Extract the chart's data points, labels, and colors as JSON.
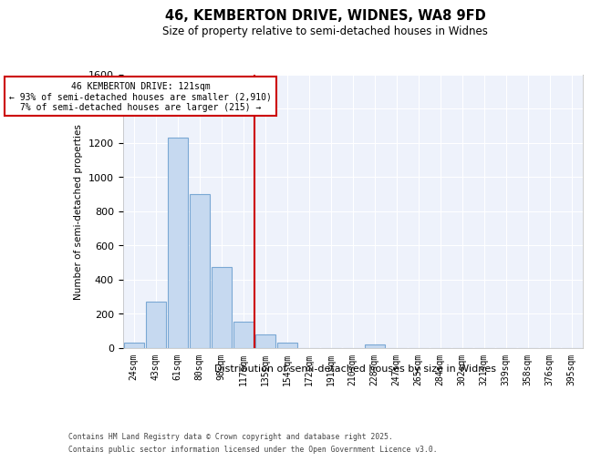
{
  "title_line1": "46, KEMBERTON DRIVE, WIDNES, WA8 9FD",
  "title_line2": "Size of property relative to semi-detached houses in Widnes",
  "xlabel": "Distribution of semi-detached houses by size in Widnes",
  "ylabel": "Number of semi-detached properties",
  "bins": [
    "24sqm",
    "43sqm",
    "61sqm",
    "80sqm",
    "98sqm",
    "117sqm",
    "135sqm",
    "154sqm",
    "172sqm",
    "191sqm",
    "210sqm",
    "228sqm",
    "247sqm",
    "265sqm",
    "284sqm",
    "302sqm",
    "321sqm",
    "339sqm",
    "358sqm",
    "376sqm",
    "395sqm"
  ],
  "values": [
    30,
    270,
    1230,
    900,
    470,
    150,
    75,
    30,
    0,
    0,
    0,
    20,
    0,
    0,
    0,
    0,
    0,
    0,
    0,
    0,
    0
  ],
  "bar_color": "#c6d9f0",
  "bar_edge_color": "#7aa8d4",
  "vline_x_index": 5,
  "vline_color": "#cc0000",
  "annotation_title": "46 KEMBERTON DRIVE: 121sqm",
  "annotation_line1": "← 93% of semi-detached houses are smaller (2,910)",
  "annotation_line2": "7% of semi-detached houses are larger (215) →",
  "annotation_box_color": "#cc0000",
  "ylim": [
    0,
    1600
  ],
  "yticks": [
    0,
    200,
    400,
    600,
    800,
    1000,
    1200,
    1400,
    1600
  ],
  "footer_line1": "Contains HM Land Registry data © Crown copyright and database right 2025.",
  "footer_line2": "Contains public sector information licensed under the Open Government Licence v3.0.",
  "background_color": "#ffffff",
  "plot_background": "#eef2fb",
  "grid_color": "#ffffff"
}
